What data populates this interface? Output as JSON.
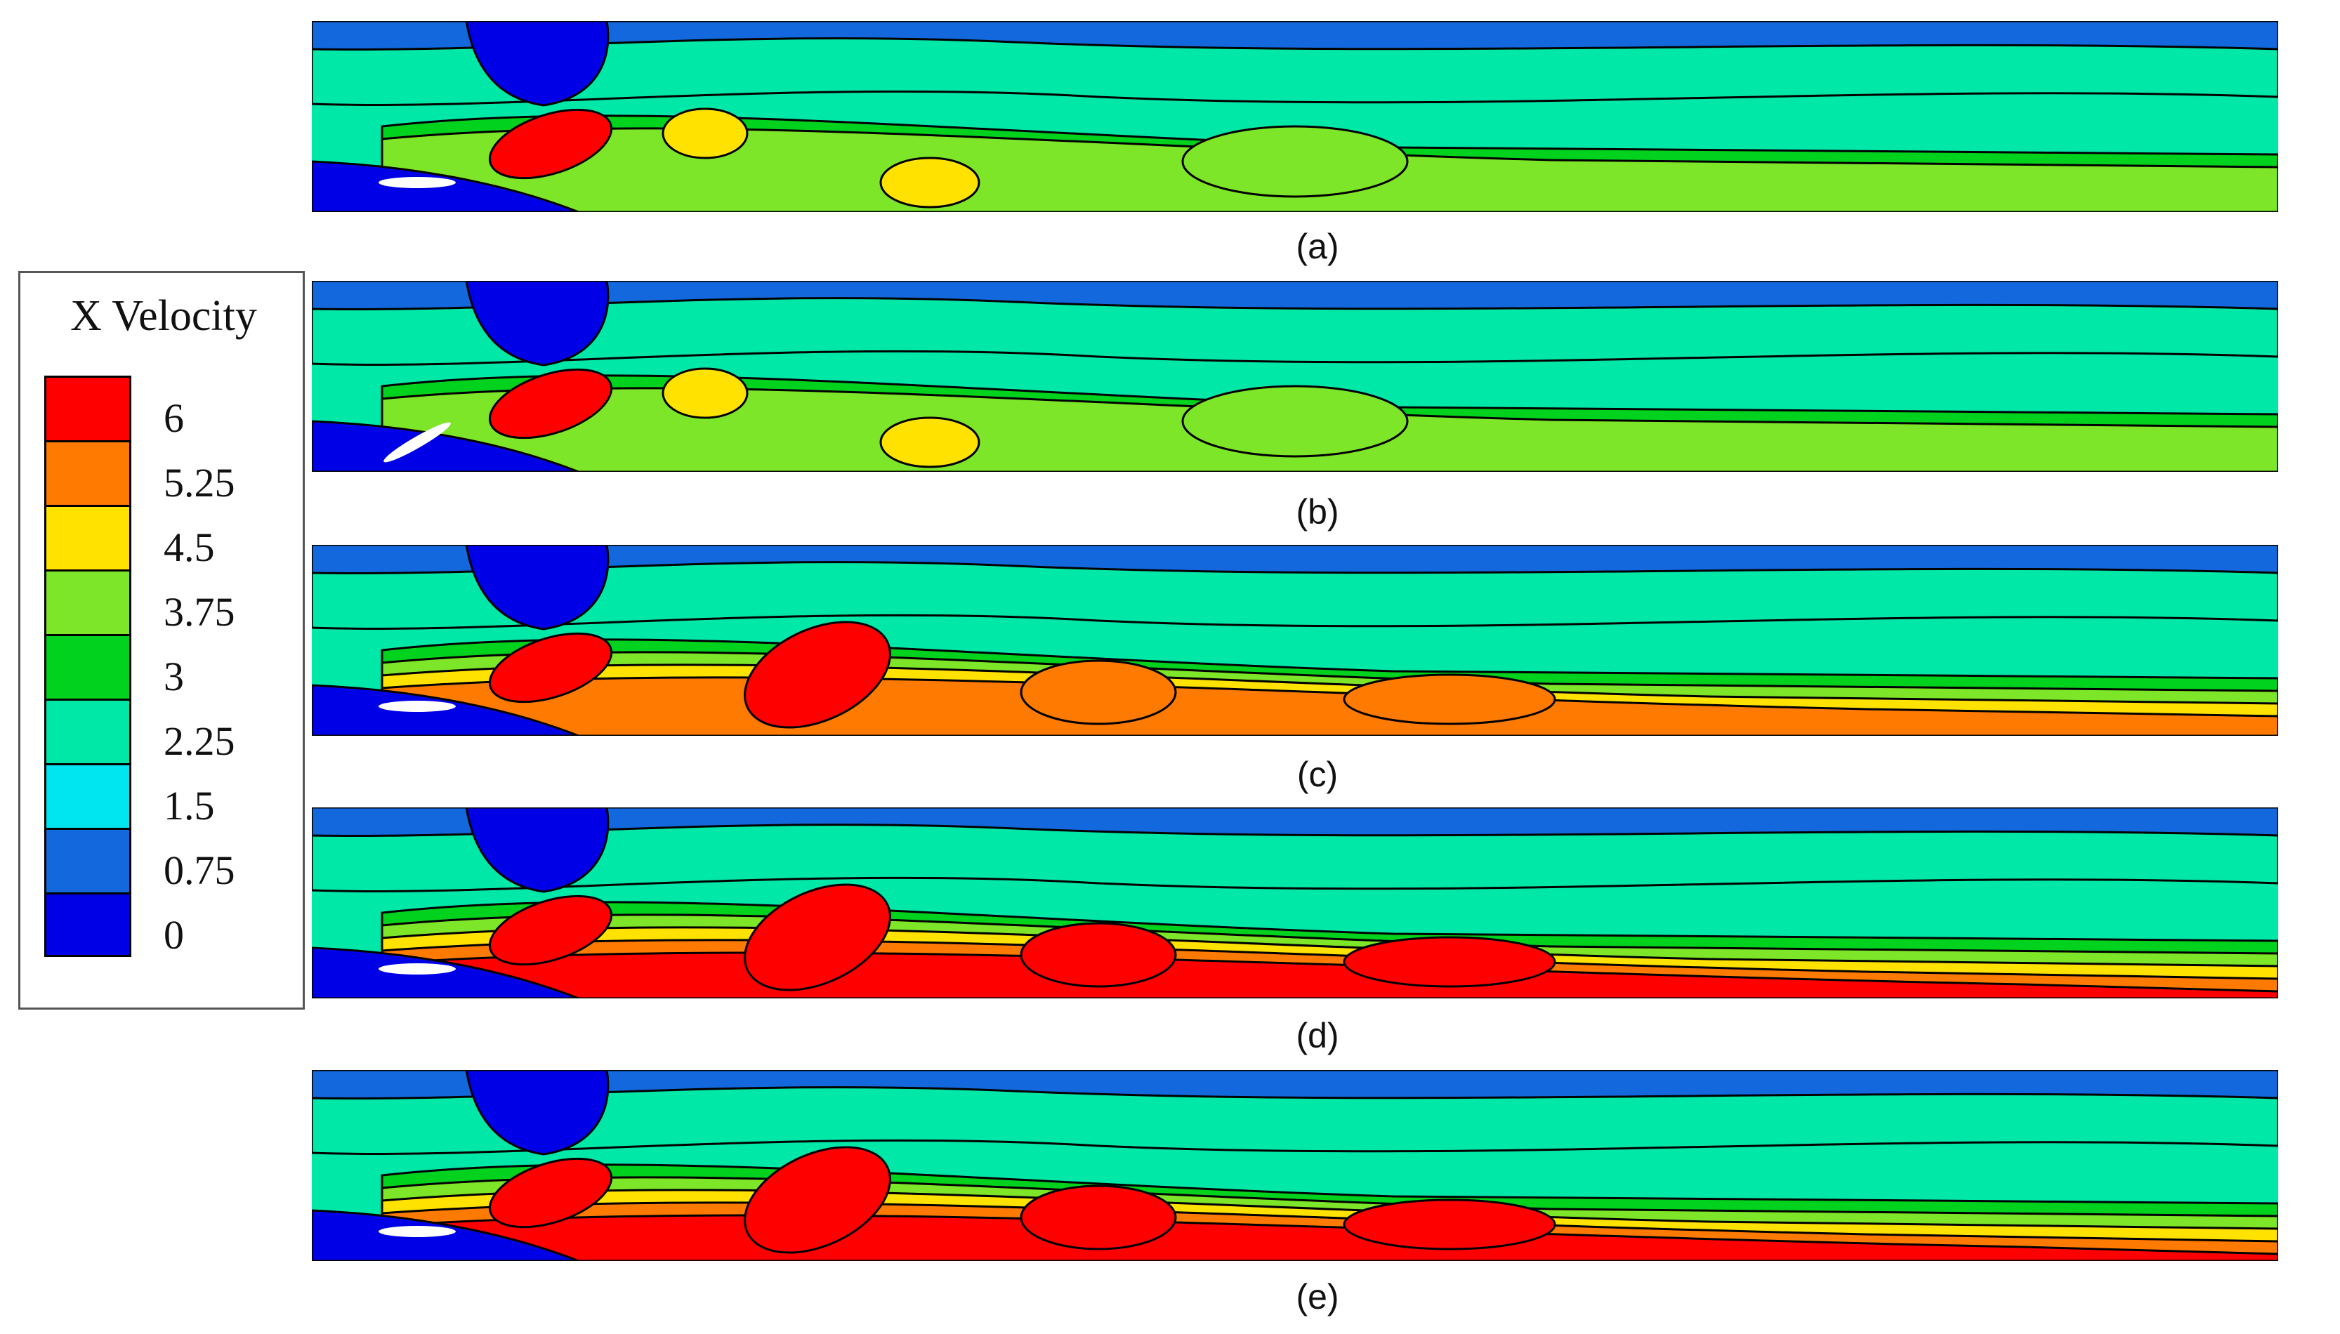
{
  "chart_data": {
    "type": "heatmap",
    "variable": "X Velocity",
    "colorbar": {
      "title": "X Velocity",
      "levels": [
        0,
        0.75,
        1.5,
        2.25,
        3,
        3.75,
        4.5,
        5.25,
        6
      ],
      "tick_labels": [
        "6",
        "5.25",
        "4.5",
        "3.75",
        "3",
        "2.25",
        "1.5",
        "0.75",
        "0"
      ],
      "colors": [
        "#0000e6",
        "#1268dc",
        "#00e6f0",
        "#00e8a8",
        "#00d21e",
        "#7ee628",
        "#ffe200",
        "#ff7a00",
        "#ff0000"
      ],
      "placement": "left"
    },
    "panels": [
      {
        "label": "(a)",
        "max_band": "6",
        "wake_band": "3.75"
      },
      {
        "label": "(b)",
        "max_band": "6",
        "wake_band": "3.75"
      },
      {
        "label": "(c)",
        "max_band": "6",
        "wake_band": "5.25"
      },
      {
        "label": "(d)",
        "max_band": "6",
        "wake_band": "6"
      },
      {
        "label": "(e)",
        "max_band": "6",
        "wake_band": "6"
      }
    ]
  }
}
